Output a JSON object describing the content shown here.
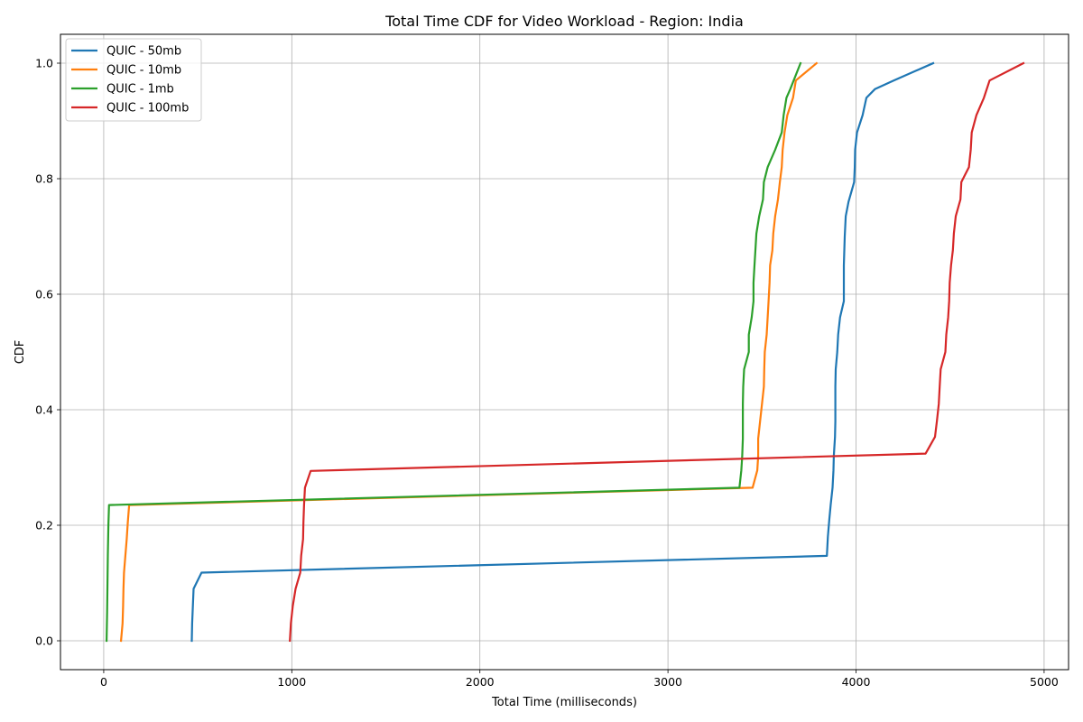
{
  "chart_data": {
    "type": "line",
    "title": "Total Time CDF for Video Workload - Region: India",
    "xlabel": "Total Time (milliseconds)",
    "ylabel": "CDF",
    "xlim": [
      -230,
      5130
    ],
    "ylim": [
      -0.05,
      1.05
    ],
    "xticks": [
      0,
      1000,
      2000,
      3000,
      4000,
      5000
    ],
    "yticks": [
      0.0,
      0.2,
      0.4,
      0.6,
      0.8,
      1.0
    ],
    "xtick_labels": [
      "0",
      "1000",
      "2000",
      "3000",
      "4000",
      "5000"
    ],
    "ytick_labels": [
      "0.0",
      "0.2",
      "0.4",
      "0.6",
      "0.8",
      "1.0"
    ],
    "grid": true,
    "legend_position": "top-left",
    "series": [
      {
        "name": "QUIC - 50mb",
        "color": "#1f77b4",
        "points": [
          [
            468,
            0.0
          ],
          [
            470,
            0.03
          ],
          [
            474,
            0.06
          ],
          [
            478,
            0.09
          ],
          [
            520,
            0.118
          ],
          [
            3845,
            0.147
          ],
          [
            3850,
            0.18
          ],
          [
            3858,
            0.21
          ],
          [
            3865,
            0.235
          ],
          [
            3875,
            0.265
          ],
          [
            3880,
            0.295
          ],
          [
            3882,
            0.32
          ],
          [
            3888,
            0.353
          ],
          [
            3890,
            0.38
          ],
          [
            3890,
            0.41
          ],
          [
            3890,
            0.44
          ],
          [
            3892,
            0.47
          ],
          [
            3900,
            0.5
          ],
          [
            3905,
            0.53
          ],
          [
            3915,
            0.56
          ],
          [
            3935,
            0.588
          ],
          [
            3935,
            0.62
          ],
          [
            3935,
            0.65
          ],
          [
            3940,
            0.7
          ],
          [
            3945,
            0.735
          ],
          [
            3960,
            0.76
          ],
          [
            3990,
            0.794
          ],
          [
            3993,
            0.82
          ],
          [
            3995,
            0.85
          ],
          [
            4005,
            0.88
          ],
          [
            4035,
            0.91
          ],
          [
            4055,
            0.94
          ],
          [
            4100,
            0.955
          ],
          [
            4200,
            0.97
          ],
          [
            4410,
            1.0
          ]
        ]
      },
      {
        "name": "QUIC - 10mb",
        "color": "#ff7f0e",
        "points": [
          [
            92,
            0.0
          ],
          [
            100,
            0.03
          ],
          [
            103,
            0.06
          ],
          [
            105,
            0.09
          ],
          [
            108,
            0.118
          ],
          [
            115,
            0.147
          ],
          [
            122,
            0.176
          ],
          [
            128,
            0.205
          ],
          [
            135,
            0.235
          ],
          [
            3450,
            0.265
          ],
          [
            3475,
            0.295
          ],
          [
            3480,
            0.32
          ],
          [
            3480,
            0.35
          ],
          [
            3490,
            0.38
          ],
          [
            3500,
            0.41
          ],
          [
            3510,
            0.44
          ],
          [
            3512,
            0.47
          ],
          [
            3515,
            0.5
          ],
          [
            3525,
            0.53
          ],
          [
            3530,
            0.56
          ],
          [
            3535,
            0.588
          ],
          [
            3540,
            0.62
          ],
          [
            3543,
            0.65
          ],
          [
            3555,
            0.676
          ],
          [
            3560,
            0.705
          ],
          [
            3570,
            0.735
          ],
          [
            3585,
            0.764
          ],
          [
            3595,
            0.794
          ],
          [
            3605,
            0.82
          ],
          [
            3610,
            0.85
          ],
          [
            3620,
            0.88
          ],
          [
            3635,
            0.91
          ],
          [
            3665,
            0.94
          ],
          [
            3680,
            0.97
          ],
          [
            3790,
            1.0
          ]
        ]
      },
      {
        "name": "QUIC - 1mb",
        "color": "#2ca02c",
        "points": [
          [
            15,
            0.0
          ],
          [
            18,
            0.05
          ],
          [
            20,
            0.1
          ],
          [
            22,
            0.15
          ],
          [
            25,
            0.2
          ],
          [
            28,
            0.235
          ],
          [
            3380,
            0.265
          ],
          [
            3390,
            0.295
          ],
          [
            3395,
            0.32
          ],
          [
            3398,
            0.35
          ],
          [
            3398,
            0.38
          ],
          [
            3398,
            0.41
          ],
          [
            3400,
            0.44
          ],
          [
            3405,
            0.47
          ],
          [
            3430,
            0.5
          ],
          [
            3430,
            0.53
          ],
          [
            3445,
            0.56
          ],
          [
            3455,
            0.588
          ],
          [
            3455,
            0.62
          ],
          [
            3460,
            0.65
          ],
          [
            3465,
            0.676
          ],
          [
            3470,
            0.705
          ],
          [
            3485,
            0.735
          ],
          [
            3505,
            0.764
          ],
          [
            3510,
            0.794
          ],
          [
            3530,
            0.82
          ],
          [
            3570,
            0.85
          ],
          [
            3605,
            0.88
          ],
          [
            3615,
            0.91
          ],
          [
            3630,
            0.94
          ],
          [
            3650,
            0.955
          ],
          [
            3705,
            1.0
          ]
        ]
      },
      {
        "name": "QUIC - 100mb",
        "color": "#d62728",
        "points": [
          [
            990,
            0.0
          ],
          [
            995,
            0.03
          ],
          [
            1005,
            0.06
          ],
          [
            1020,
            0.09
          ],
          [
            1045,
            0.118
          ],
          [
            1050,
            0.147
          ],
          [
            1060,
            0.176
          ],
          [
            1062,
            0.205
          ],
          [
            1065,
            0.235
          ],
          [
            1070,
            0.265
          ],
          [
            1100,
            0.294
          ],
          [
            4370,
            0.324
          ],
          [
            4420,
            0.353
          ],
          [
            4430,
            0.38
          ],
          [
            4440,
            0.41
          ],
          [
            4445,
            0.44
          ],
          [
            4450,
            0.47
          ],
          [
            4475,
            0.5
          ],
          [
            4480,
            0.53
          ],
          [
            4490,
            0.56
          ],
          [
            4495,
            0.588
          ],
          [
            4498,
            0.62
          ],
          [
            4505,
            0.65
          ],
          [
            4515,
            0.676
          ],
          [
            4520,
            0.705
          ],
          [
            4530,
            0.735
          ],
          [
            4555,
            0.764
          ],
          [
            4560,
            0.794
          ],
          [
            4600,
            0.82
          ],
          [
            4610,
            0.85
          ],
          [
            4615,
            0.88
          ],
          [
            4640,
            0.91
          ],
          [
            4680,
            0.94
          ],
          [
            4710,
            0.97
          ],
          [
            4890,
            1.0
          ]
        ]
      }
    ]
  }
}
